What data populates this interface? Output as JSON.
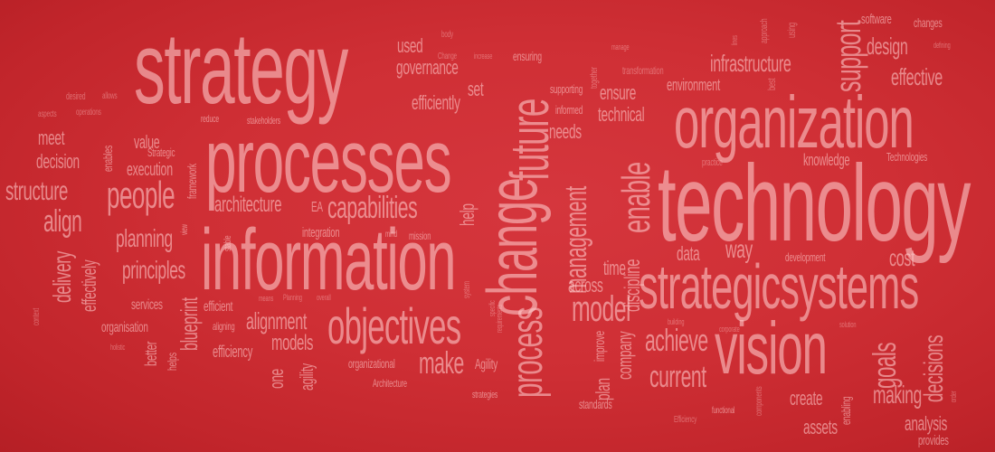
{
  "text_color": "#f0b6b8",
  "background_color": "#cf2f35",
  "words": [
    "strategy",
    "processes",
    "information",
    "technology",
    "organization",
    "change",
    "future",
    "strategicsystems",
    "vision",
    "objectives",
    "people",
    "structure",
    "align",
    "planning",
    "principles",
    "delivery",
    "blueprint",
    "effectively",
    "architecture",
    "EA",
    "capabilities",
    "governance",
    "used",
    "efficiently",
    "set",
    "ensure",
    "technical",
    "needs",
    "enable",
    "management",
    "discipline",
    "model",
    "across",
    "time",
    "way",
    "cost",
    "data",
    "achieve",
    "current",
    "goals",
    "decisions",
    "create",
    "making",
    "assets",
    "analysis",
    "provides",
    "support",
    "design",
    "effective",
    "infrastructure",
    "environment",
    "knowledge",
    "Technologies",
    "software",
    "changes",
    "development",
    "process",
    "make",
    "models",
    "alignment",
    "efficiency",
    "efficient",
    "services",
    "organisation",
    "agility",
    "Agility",
    "organizational",
    "Architecture",
    "strategies",
    "plan",
    "improve",
    "company",
    "standards",
    "Efficiency",
    "functional",
    "corporate",
    "solution",
    "holistic",
    "better",
    "helps",
    "aligning",
    "meet",
    "decision",
    "value",
    "execution",
    "Strategic",
    "reduce",
    "stakeholders",
    "framework",
    "integration",
    "mission",
    "mind",
    "stable",
    "view",
    "enables",
    "desired",
    "allows",
    "aspects",
    "operations",
    "body",
    "Change",
    "increase",
    "ensuring",
    "together",
    "transformation",
    "manage",
    "supporting",
    "informed",
    "practice",
    "defining",
    "approach",
    "using",
    "lines",
    "context",
    "one",
    "Planning",
    "means",
    "overall",
    "specific",
    "requirements",
    "system",
    "help",
    "building",
    "components",
    "enabling",
    "order",
    "best"
  ]
}
